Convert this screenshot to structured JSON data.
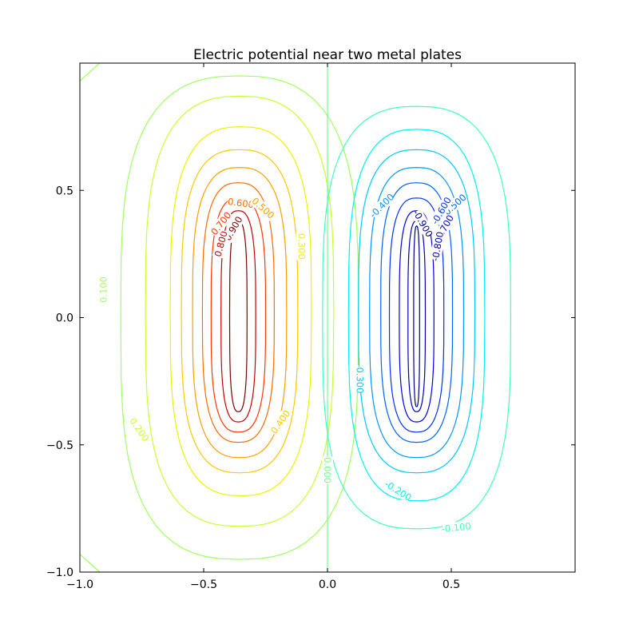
{
  "chart_data": {
    "type": "contour",
    "title": "Electric potential near two metal plates",
    "xlabel": "",
    "ylabel": "",
    "xlim": [
      -1.0,
      1.0
    ],
    "ylim": [
      -1.0,
      1.0
    ],
    "x_ticks": [
      -1.0,
      -0.5,
      0.0,
      0.5
    ],
    "x_tick_labels": [
      "−1.0",
      "−0.5",
      "0.0",
      "0.5"
    ],
    "y_ticks": [
      -1.0,
      -0.5,
      0.0,
      0.5
    ],
    "y_tick_labels": [
      "−1.0",
      "−0.5",
      "0.0",
      "0.5"
    ],
    "grid": false,
    "colormap": "jet",
    "series": [
      {
        "level": 0.9,
        "label": "0.900",
        "color": "#800000",
        "cx": -0.36,
        "hw": 0.035,
        "top": 0.38,
        "bot": -0.37
      },
      {
        "level": 0.8,
        "label": "0.800",
        "color": "#c80000",
        "cx": -0.36,
        "hw": 0.07,
        "top": 0.42,
        "bot": -0.41
      },
      {
        "level": 0.7,
        "label": "0.700",
        "color": "#ff3a00",
        "cx": -0.36,
        "hw": 0.11,
        "top": 0.47,
        "bot": -0.45
      },
      {
        "level": 0.6,
        "label": "0.600",
        "color": "#ff6b00",
        "cx": -0.36,
        "hw": 0.145,
        "top": 0.53,
        "bot": -0.49
      },
      {
        "level": 0.5,
        "label": "0.500",
        "color": "#ff9e00",
        "cx": -0.355,
        "hw": 0.19,
        "top": 0.59,
        "bot": -0.55
      },
      {
        "level": 0.4,
        "label": "0.400",
        "color": "#ffc800",
        "cx": -0.355,
        "hw": 0.235,
        "top": 0.66,
        "bot": -0.61
      },
      {
        "level": 0.3,
        "label": "0.300",
        "color": "#f0f000",
        "cx": -0.35,
        "hw": 0.285,
        "top": 0.75,
        "bot": -0.7
      },
      {
        "level": 0.2,
        "label": "0.200",
        "color": "#c8ff30",
        "cx": -0.355,
        "hw": 0.38,
        "top": 0.87,
        "bot": -0.82
      },
      {
        "level": 0.1,
        "label": "0.100",
        "color": "#a0ff60",
        "cx": -0.5,
        "hw": 0.5,
        "top": 1.0,
        "bot": -1.0
      },
      {
        "level": 0.0,
        "label": "0.000",
        "color": "#70ff90",
        "cx": 0.0,
        "hw": 0.0,
        "top": 1.0,
        "bot": -1.0
      },
      {
        "level": -0.1,
        "label": "-0.100",
        "color": "#40ffc0",
        "cx": 0.36,
        "hw": 0.38,
        "top": 0.83,
        "bot": -0.83
      },
      {
        "level": -0.2,
        "label": "-0.200",
        "color": "#00f0f0",
        "cx": 0.36,
        "hw": 0.275,
        "top": 0.74,
        "bot": -0.72
      },
      {
        "level": -0.3,
        "label": "-0.300",
        "color": "#00c8ff",
        "cx": 0.36,
        "hw": 0.235,
        "top": 0.66,
        "bot": -0.61
      },
      {
        "level": -0.4,
        "label": "-0.400",
        "color": "#0096ff",
        "cx": 0.36,
        "hw": 0.19,
        "top": 0.59,
        "bot": -0.55
      },
      {
        "level": -0.5,
        "label": "-0.500",
        "color": "#0064ff",
        "cx": 0.36,
        "hw": 0.145,
        "top": 0.53,
        "bot": -0.49
      },
      {
        "level": -0.6,
        "label": "-0.600",
        "color": "#0032ff",
        "cx": 0.36,
        "hw": 0.11,
        "top": 0.47,
        "bot": -0.45
      },
      {
        "level": -0.7,
        "label": "-0.700",
        "color": "#0000e8",
        "cx": 0.36,
        "hw": 0.07,
        "top": 0.42,
        "bot": -0.41
      },
      {
        "level": -0.8,
        "label": "-0.800",
        "color": "#0000b4",
        "cx": 0.36,
        "hw": 0.035,
        "top": 0.38,
        "bot": -0.37
      },
      {
        "level": -0.9,
        "label": "-0.900",
        "color": "#000080",
        "cx": 0.36,
        "hw": 0.012,
        "top": 0.36,
        "bot": -0.35
      }
    ],
    "contour_labels": [
      {
        "text": "0.900",
        "x": -0.38,
        "y": 0.35,
        "angle": -60,
        "color": "#800000"
      },
      {
        "text": "0.800",
        "x": -0.43,
        "y": 0.29,
        "angle": -75,
        "color": "#c80000"
      },
      {
        "text": "0.700",
        "x": -0.43,
        "y": 0.37,
        "angle": -52,
        "color": "#ff3a00"
      },
      {
        "text": "0.600",
        "x": -0.35,
        "y": 0.45,
        "angle": 8,
        "color": "#ff6b00"
      },
      {
        "text": "0.500",
        "x": -0.26,
        "y": 0.43,
        "angle": 42,
        "color": "#ff9e00"
      },
      {
        "text": "0.400",
        "x": -0.19,
        "y": -0.41,
        "angle": -55,
        "color": "#ffc800"
      },
      {
        "text": "0.300",
        "x": -0.105,
        "y": 0.28,
        "angle": 90,
        "color": "#f0f000"
      },
      {
        "text": "0.200",
        "x": -0.76,
        "y": -0.44,
        "angle": 55,
        "color": "#c8ff30"
      },
      {
        "text": "0.100",
        "x": -0.905,
        "y": 0.11,
        "angle": -90,
        "color": "#a0ff60"
      },
      {
        "text": "0.000",
        "x": 0.0,
        "y": -0.6,
        "angle": 90,
        "color": "#70ff90"
      },
      {
        "text": "-0.100",
        "x": 0.52,
        "y": -0.825,
        "angle": -6,
        "color": "#40ffc0"
      },
      {
        "text": "-0.200",
        "x": 0.285,
        "y": -0.68,
        "angle": 32,
        "color": "#00f0f0"
      },
      {
        "text": "-0.300",
        "x": 0.13,
        "y": -0.24,
        "angle": 90,
        "color": "#00c8ff"
      },
      {
        "text": "-0.400",
        "x": 0.22,
        "y": 0.44,
        "angle": -45,
        "color": "#0096ff"
      },
      {
        "text": "-0.500",
        "x": 0.51,
        "y": 0.44,
        "angle": -42,
        "color": "#0064ff"
      },
      {
        "text": "-0.600",
        "x": 0.46,
        "y": 0.42,
        "angle": -60,
        "color": "#0032ff"
      },
      {
        "text": "-0.700",
        "x": 0.47,
        "y": 0.35,
        "angle": -60,
        "color": "#0000e8"
      },
      {
        "text": "-0.800",
        "x": 0.445,
        "y": 0.28,
        "angle": -80,
        "color": "#0000b4"
      },
      {
        "text": "-0.900",
        "x": 0.385,
        "y": 0.37,
        "angle": 60,
        "color": "#000080"
      }
    ]
  }
}
